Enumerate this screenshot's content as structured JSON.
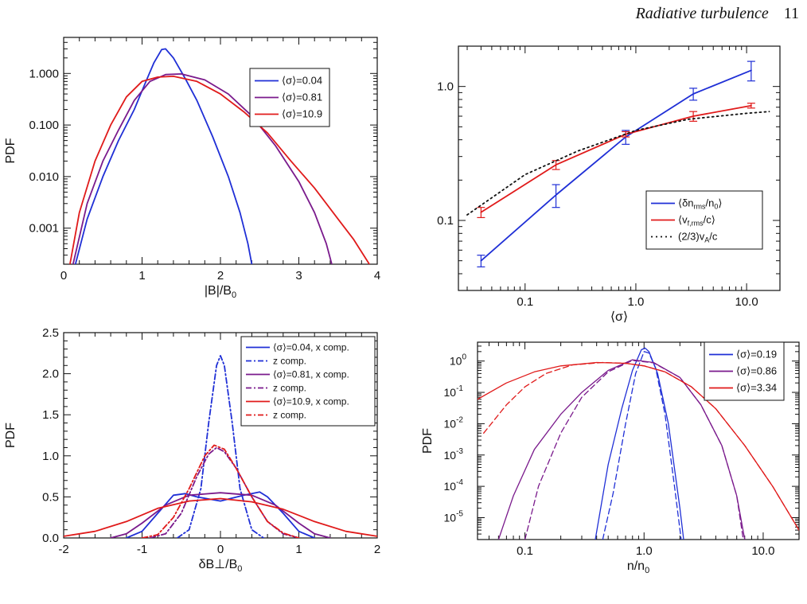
{
  "header": {
    "title": "Radiative turbulence",
    "page_number": "11"
  },
  "colors": {
    "blue": "#1f2fd6",
    "purple": "#7a1a8c",
    "red": "#e01a1a",
    "black": "#111111"
  },
  "chart_data": [
    {
      "id": "tl",
      "type": "line",
      "xlabel": "|B|/B0",
      "ylabel": "PDF",
      "xlim": [
        0,
        4
      ],
      "ylim": [
        0.0002,
        5
      ],
      "yscale": "log",
      "xticks": [
        "0",
        "1",
        "2",
        "3",
        "4"
      ],
      "yticks": [
        "0.001",
        "0.010",
        "0.100",
        "1.000"
      ],
      "legend_position": "top-right",
      "series": [
        {
          "name": "⟨σ⟩=0.04",
          "color": "blue",
          "x": [
            0.15,
            0.3,
            0.5,
            0.7,
            0.9,
            1.05,
            1.15,
            1.25,
            1.3,
            1.4,
            1.55,
            1.7,
            1.9,
            2.1,
            2.25,
            2.35,
            2.4
          ],
          "y": [
            0.0002,
            0.0015,
            0.01,
            0.05,
            0.2,
            0.7,
            1.6,
            2.9,
            3.0,
            2.0,
            0.8,
            0.3,
            0.06,
            0.01,
            0.002,
            0.0005,
            0.0002
          ]
        },
        {
          "name": "⟨σ⟩=0.81",
          "color": "purple",
          "x": [
            0.12,
            0.3,
            0.5,
            0.7,
            0.9,
            1.1,
            1.3,
            1.5,
            1.8,
            2.1,
            2.4,
            2.7,
            3.0,
            3.2,
            3.35,
            3.42
          ],
          "y": [
            0.0002,
            0.003,
            0.02,
            0.08,
            0.3,
            0.7,
            0.95,
            0.98,
            0.75,
            0.4,
            0.15,
            0.04,
            0.008,
            0.002,
            0.0005,
            0.0002
          ]
        },
        {
          "name": "⟨σ⟩=10.9",
          "color": "red",
          "x": [
            0.08,
            0.2,
            0.4,
            0.6,
            0.8,
            1.0,
            1.2,
            1.4,
            1.7,
            2.0,
            2.3,
            2.6,
            2.9,
            3.2,
            3.5,
            3.7,
            3.9
          ],
          "y": [
            0.0002,
            0.002,
            0.02,
            0.1,
            0.35,
            0.7,
            0.85,
            0.88,
            0.7,
            0.4,
            0.18,
            0.07,
            0.02,
            0.006,
            0.0015,
            0.0006,
            0.0002
          ]
        }
      ]
    },
    {
      "id": "tr",
      "type": "line",
      "xlabel": "⟨σ⟩",
      "ylabel": "",
      "xlim": [
        0.025,
        20
      ],
      "ylim": [
        0.03,
        2
      ],
      "xscale": "log",
      "yscale": "log",
      "xticks": [
        "0.1",
        "1.0",
        "10.0"
      ],
      "yticks": [
        "0.1",
        "1.0"
      ],
      "legend_position": "bottom-right",
      "series": [
        {
          "name": "⟨δn_rms/n0⟩",
          "color": "blue",
          "x": [
            0.04,
            0.19,
            0.81,
            3.3,
            11.0
          ],
          "y": [
            0.05,
            0.155,
            0.42,
            0.88,
            1.32
          ],
          "err": [
            0.005,
            0.03,
            0.05,
            0.09,
            0.22
          ]
        },
        {
          "name": "⟨v_f,rms/c⟩",
          "color": "red",
          "x": [
            0.04,
            0.19,
            0.81,
            3.3,
            11.0
          ],
          "y": [
            0.115,
            0.26,
            0.44,
            0.6,
            0.72
          ],
          "err": [
            0.01,
            0.02,
            0.02,
            0.05,
            0.03
          ]
        },
        {
          "name": "(2/3)vA/c",
          "color": "black",
          "style": "dotted",
          "x": [
            0.03,
            0.1,
            0.3,
            1.0,
            3.0,
            10.0,
            16.0
          ],
          "y": [
            0.11,
            0.22,
            0.33,
            0.47,
            0.57,
            0.63,
            0.65
          ]
        }
      ]
    },
    {
      "id": "bl",
      "type": "line",
      "xlabel": "δB⊥/B0",
      "ylabel": "PDF",
      "xlim": [
        -2,
        2
      ],
      "ylim": [
        0,
        2.5
      ],
      "xticks": [
        "-2",
        "-1",
        "0",
        "1",
        "2"
      ],
      "yticks": [
        "0.0",
        "0.5",
        "1.0",
        "1.5",
        "2.0",
        "2.5"
      ],
      "legend_position": "top-right",
      "series": [
        {
          "name": "⟨σ⟩=0.04, x comp.",
          "color": "blue",
          "style": "solid",
          "x": [
            -1.2,
            -1.0,
            -0.8,
            -0.6,
            -0.45,
            -0.3,
            0.0,
            0.3,
            0.5,
            0.6,
            0.8,
            1.0,
            1.2
          ],
          "y": [
            0.0,
            0.08,
            0.3,
            0.52,
            0.54,
            0.5,
            0.45,
            0.52,
            0.56,
            0.5,
            0.3,
            0.08,
            0.0
          ]
        },
        {
          "name": "z comp.",
          "color": "blue",
          "style": "dashdot",
          "x": [
            -0.55,
            -0.4,
            -0.25,
            -0.15,
            -0.05,
            0.0,
            0.05,
            0.15,
            0.25,
            0.4,
            0.55
          ],
          "y": [
            0.0,
            0.1,
            0.6,
            1.4,
            2.1,
            2.22,
            2.1,
            1.4,
            0.6,
            0.1,
            0.0
          ]
        },
        {
          "name": "⟨σ⟩=0.81, x comp.",
          "color": "purple",
          "style": "solid",
          "x": [
            -1.4,
            -1.2,
            -1.0,
            -0.7,
            -0.4,
            0.0,
            0.4,
            0.7,
            1.0,
            1.2,
            1.4
          ],
          "y": [
            0.0,
            0.05,
            0.18,
            0.4,
            0.52,
            0.55,
            0.52,
            0.4,
            0.18,
            0.05,
            0.0
          ]
        },
        {
          "name": "z comp.",
          "color": "purple",
          "style": "dashdot",
          "x": [
            -0.9,
            -0.7,
            -0.5,
            -0.3,
            -0.15,
            -0.05,
            0.05,
            0.2,
            0.4,
            0.6,
            0.8,
            1.0
          ],
          "y": [
            0.0,
            0.05,
            0.3,
            0.75,
            1.02,
            1.1,
            1.05,
            0.85,
            0.5,
            0.2,
            0.05,
            0.0
          ]
        },
        {
          "name": "⟨σ⟩=10.9, x comp.",
          "color": "red",
          "style": "solid",
          "x": [
            -2.0,
            -1.6,
            -1.2,
            -0.8,
            -0.4,
            0.0,
            0.4,
            0.8,
            1.2,
            1.6,
            2.0
          ],
          "y": [
            0.02,
            0.08,
            0.2,
            0.36,
            0.45,
            0.48,
            0.44,
            0.35,
            0.2,
            0.08,
            0.02
          ]
        },
        {
          "name": "z comp.",
          "color": "red",
          "style": "dashdot",
          "x": [
            -1.0,
            -0.8,
            -0.6,
            -0.4,
            -0.2,
            -0.08,
            0.05,
            0.2,
            0.4,
            0.6,
            0.8,
            1.0
          ],
          "y": [
            0.0,
            0.04,
            0.25,
            0.6,
            1.0,
            1.13,
            1.08,
            0.85,
            0.5,
            0.2,
            0.06,
            0.0
          ]
        }
      ]
    },
    {
      "id": "br",
      "type": "line",
      "xlabel": "n/n0",
      "ylabel": "PDF",
      "xlim": [
        0.04,
        20
      ],
      "ylim": [
        2e-06,
        4
      ],
      "xscale": "log",
      "yscale": "log",
      "xticks": [
        "0.1",
        "1.0",
        "10.0"
      ],
      "yticks": [
        "10^-5",
        "10^-4",
        "10^-3",
        "10^-2",
        "10^-1",
        "10^0"
      ],
      "legend_position": "top-right",
      "legend_only_solid": true,
      "series": [
        {
          "name": "⟨σ⟩=0.19",
          "color": "blue",
          "style": "solid",
          "x": [
            0.39,
            0.5,
            0.65,
            0.8,
            0.95,
            1.02,
            1.1,
            1.3,
            1.6,
            2.0,
            2.15
          ],
          "y": [
            2e-06,
            0.0005,
            0.03,
            0.5,
            2.3,
            2.6,
            2.0,
            0.4,
            0.01,
            2e-05,
            2e-06
          ]
        },
        {
          "name": "",
          "color": "blue",
          "style": "dashed",
          "x": [
            0.45,
            0.55,
            0.7,
            0.85,
            1.0,
            1.1,
            1.25,
            1.5,
            1.8,
            2.05
          ],
          "y": [
            2e-06,
            6e-05,
            0.01,
            0.4,
            2.0,
            1.8,
            0.6,
            0.02,
            0.0001,
            2e-06
          ]
        },
        {
          "name": "⟨σ⟩=0.86",
          "color": "purple",
          "style": "solid",
          "x": [
            0.06,
            0.08,
            0.12,
            0.2,
            0.3,
            0.5,
            0.8,
            1.2,
            2.0,
            3.0,
            4.5,
            6.0,
            7.0
          ],
          "y": [
            2e-06,
            5e-05,
            0.0015,
            0.02,
            0.1,
            0.5,
            1.1,
            0.9,
            0.3,
            0.04,
            0.002,
            5e-05,
            2e-06
          ]
        },
        {
          "name": "",
          "color": "purple",
          "style": "dashed",
          "x": [
            0.1,
            0.13,
            0.2,
            0.3,
            0.5,
            0.8,
            1.2,
            2.0,
            3.0,
            4.5,
            6.0,
            6.8
          ],
          "y": [
            2e-06,
            0.0001,
            0.005,
            0.07,
            0.45,
            1.05,
            0.88,
            0.3,
            0.04,
            0.002,
            5e-05,
            2e-06
          ]
        },
        {
          "name": "⟨σ⟩=3.34",
          "color": "red",
          "style": "solid",
          "x": [
            0.04,
            0.07,
            0.12,
            0.2,
            0.4,
            0.7,
            1.0,
            1.5,
            2.5,
            4.0,
            7.0,
            12.0,
            20.0
          ],
          "y": [
            0.06,
            0.2,
            0.45,
            0.7,
            0.9,
            0.85,
            0.7,
            0.45,
            0.15,
            0.03,
            0.002,
            0.0001,
            4e-06
          ]
        },
        {
          "name": "",
          "color": "red",
          "style": "dashed",
          "x": [
            0.045,
            0.07,
            0.1,
            0.15,
            0.25,
            0.45,
            0.7,
            1.0,
            1.5,
            2.5,
            4.0,
            7.0,
            12.0,
            20.0
          ],
          "y": [
            0.005,
            0.04,
            0.15,
            0.4,
            0.75,
            0.9,
            0.85,
            0.7,
            0.45,
            0.15,
            0.03,
            0.002,
            0.0001,
            4e-06
          ]
        }
      ]
    }
  ]
}
